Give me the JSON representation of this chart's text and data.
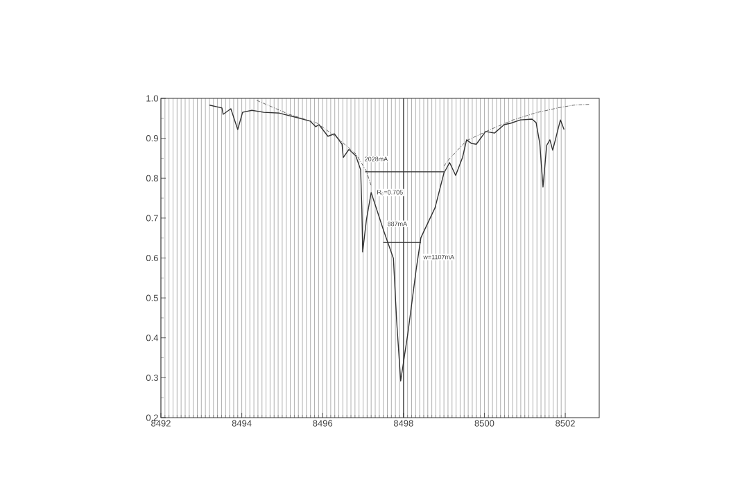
{
  "chart_data": {
    "type": "line",
    "xlim": [
      8492,
      8502.84
    ],
    "ylim": [
      0.2,
      1.0
    ],
    "xticks": [
      8492,
      8494,
      8496,
      8498,
      8500,
      8502
    ],
    "yticks": [
      {
        "value": 0.2,
        "label": "0.2"
      },
      {
        "value": 0.3,
        "label": "0.3"
      },
      {
        "value": 0.4,
        "label": "0.4"
      },
      {
        "value": 0.5,
        "label": "0.5"
      },
      {
        "value": 0.6,
        "label": "0.6"
      },
      {
        "value": 0.7,
        "label": "0.7"
      },
      {
        "value": 0.8,
        "label": "0.8"
      },
      {
        "value": 0.9,
        "label": "0.9"
      },
      {
        "value": 1.0,
        "label": "1.0"
      }
    ],
    "grid": "x",
    "series": [
      {
        "color": "#333333",
        "line_style": "solid",
        "x": [
          8493.2,
          8493.51,
          8493.54,
          8493.73,
          8493.9,
          8494.02,
          8494.25,
          8494.54,
          8494.93,
          8495.4,
          8495.69,
          8495.83,
          8495.91,
          8496.13,
          8496.29,
          8496.48,
          8496.51,
          8496.65,
          8496.82,
          8496.94,
          8496.97,
          8496.99,
          8497.08,
          8497.2,
          8497.51,
          8497.75,
          8497.83,
          8497.93,
          8498.11,
          8498.31,
          8498.43,
          8498.78,
          8499.0,
          8499.14,
          8499.29,
          8499.46,
          8499.56,
          8499.68,
          8499.8,
          8500.03,
          8500.25,
          8500.49,
          8500.66,
          8500.89,
          8501.18,
          8501.28,
          8501.37,
          8501.45,
          8501.54,
          8501.62,
          8501.69,
          8501.88,
          8501.97
        ],
        "values": [
          0.983,
          0.976,
          0.96,
          0.974,
          0.922,
          0.965,
          0.97,
          0.965,
          0.963,
          0.951,
          0.943,
          0.929,
          0.934,
          0.905,
          0.911,
          0.885,
          0.852,
          0.872,
          0.856,
          0.821,
          0.722,
          0.615,
          0.694,
          0.764,
          0.668,
          0.599,
          0.443,
          0.292,
          0.413,
          0.569,
          0.651,
          0.726,
          0.813,
          0.839,
          0.807,
          0.852,
          0.896,
          0.887,
          0.885,
          0.917,
          0.913,
          0.934,
          0.938,
          0.946,
          0.948,
          0.939,
          0.887,
          0.778,
          0.882,
          0.896,
          0.87,
          0.946,
          0.922
        ]
      },
      {
        "color": "#555555",
        "line_style": "dashed",
        "x": [
          8494.37,
          8495.17,
          8495.86,
          8496.31,
          8496.82,
          8497.08,
          8497.2,
          8498.1,
          8499.0,
          8499.12,
          8499.56,
          8500.15,
          8500.71,
          8501.28,
          8501.86,
          8502.21,
          8502.6
        ],
        "values": [
          0.995,
          0.96,
          0.938,
          0.905,
          0.861,
          0.818,
          0.781,
          null,
          0.83,
          0.847,
          0.894,
          0.922,
          0.946,
          0.964,
          0.977,
          0.983,
          0.985
        ]
      },
      {
        "color": "#333333",
        "line_style": "solid",
        "x": [
          8497.05,
          8499.0
        ],
        "values": [
          0.816,
          0.816
        ]
      },
      {
        "color": "#333333",
        "line_style": "solid",
        "x": [
          8497.5,
          8498.43
        ],
        "values": [
          0.639,
          0.639
        ]
      }
    ],
    "ref_lines": [
      {
        "axis": "x",
        "value": 8498,
        "color": "#333333"
      }
    ],
    "annotations": [
      "2028mA",
      "R$_{c}$=0.705",
      "887mA",
      "w=1107mA"
    ]
  }
}
